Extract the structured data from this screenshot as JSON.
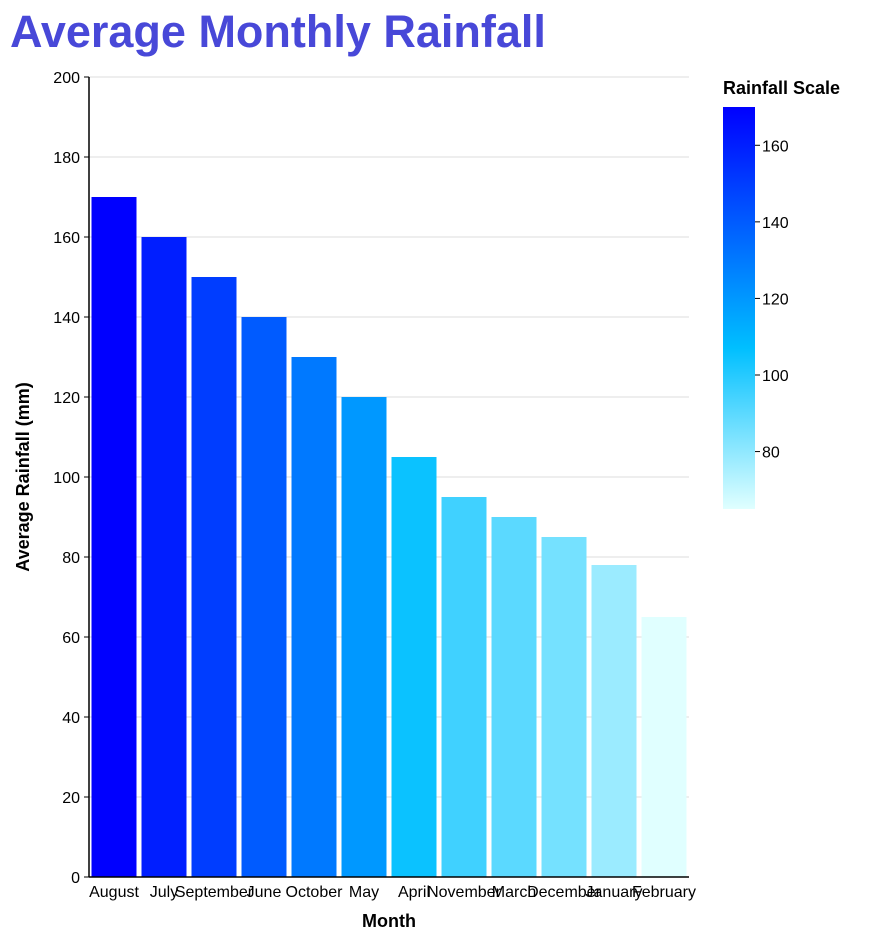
{
  "chart_data": {
    "type": "bar",
    "title": "Average Monthly Rainfall",
    "xlabel": "Month",
    "ylabel": "Average Rainfall (mm)",
    "ylim": [
      0,
      200
    ],
    "yticks": [
      0,
      20,
      40,
      60,
      80,
      100,
      120,
      140,
      160,
      180,
      200
    ],
    "grid": true,
    "categories": [
      "August",
      "July",
      "September",
      "June",
      "October",
      "May",
      "April",
      "November",
      "March",
      "December",
      "January",
      "February"
    ],
    "values": [
      170,
      160,
      150,
      140,
      130,
      120,
      105,
      95,
      90,
      85,
      78,
      65
    ],
    "legend": {
      "title": "Rainfall Scale",
      "placement": "right",
      "ticks": [
        80,
        100,
        120,
        140,
        160
      ],
      "domain": [
        65,
        170
      ]
    },
    "colors": {
      "title": "#4848d8",
      "scale_low": "#e0ffff",
      "scale_mid": "#00bfff",
      "scale_high": "#0000ff"
    }
  }
}
